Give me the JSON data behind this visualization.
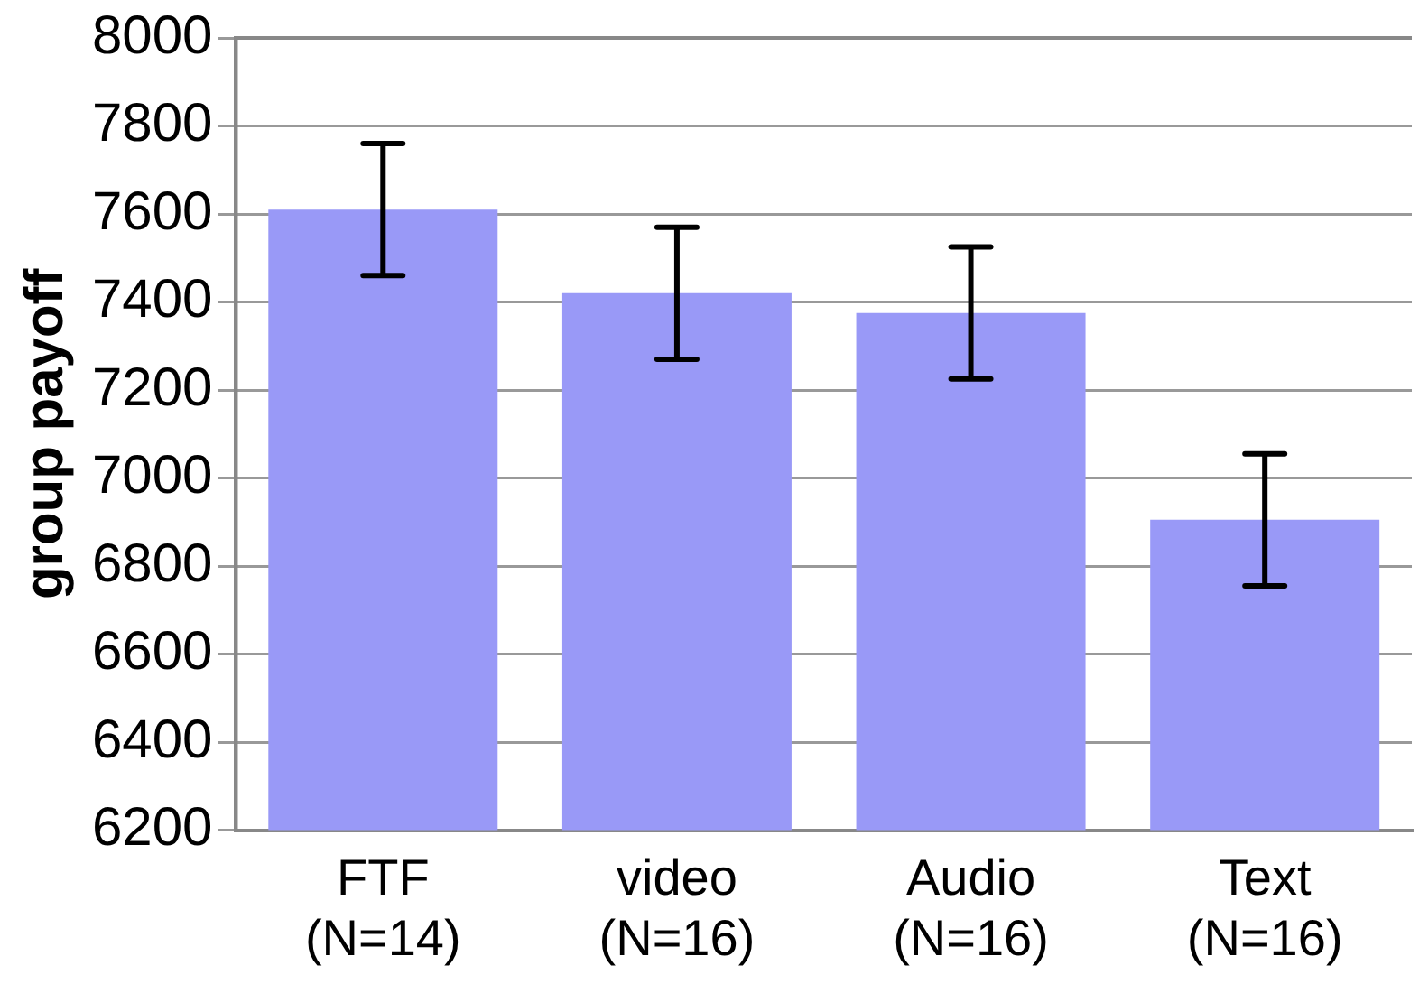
{
  "chart_data": {
    "type": "bar",
    "ylabel": "group payoff",
    "categories": [
      "FTF\n(N=14)",
      "video\n(N=16)",
      "Audio\n(N=16)",
      "Text\n(N=16)"
    ],
    "values": [
      7610,
      7420,
      7375,
      6905
    ],
    "errors": [
      150,
      150,
      150,
      150
    ],
    "color": "#9999f7",
    "ylim": [
      6200,
      8000
    ],
    "yticks": [
      6200,
      6400,
      6600,
      6800,
      7000,
      7200,
      7400,
      7600,
      7800,
      8000
    ],
    "grid": "y"
  }
}
